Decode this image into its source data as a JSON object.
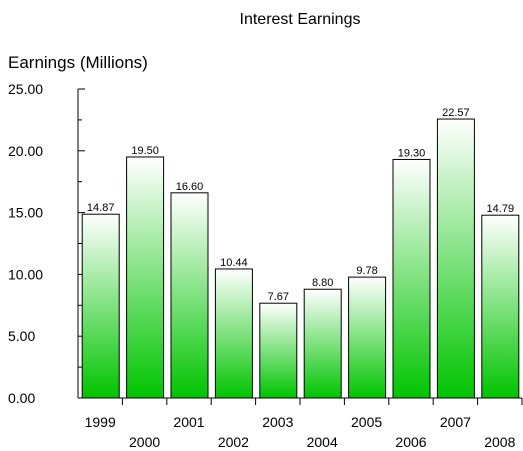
{
  "chart_data": {
    "type": "bar",
    "title": "Interest Earnings",
    "ylabel": "Earnings (Millions)",
    "xlabel": "",
    "categories": [
      "1999",
      "2000",
      "2001",
      "2002",
      "2003",
      "2004",
      "2005",
      "2006",
      "2007",
      "2008"
    ],
    "values": [
      14.87,
      19.5,
      16.6,
      10.44,
      7.67,
      8.8,
      9.78,
      19.3,
      22.57,
      14.79
    ],
    "data_labels": [
      "14.87",
      "19.50",
      "16.60",
      "10.44",
      "7.67",
      "8.80",
      "9.78",
      "19.30",
      "22.57",
      "14.79"
    ],
    "ylim": [
      0,
      25
    ],
    "yticks": [
      "0.00",
      "5.00",
      "10.00",
      "15.00",
      "20.00",
      "25.00"
    ],
    "grid": false,
    "bar_color_top": "#ffffff",
    "bar_color_bottom": "#00c400",
    "bar_edge_color": "#000000"
  }
}
